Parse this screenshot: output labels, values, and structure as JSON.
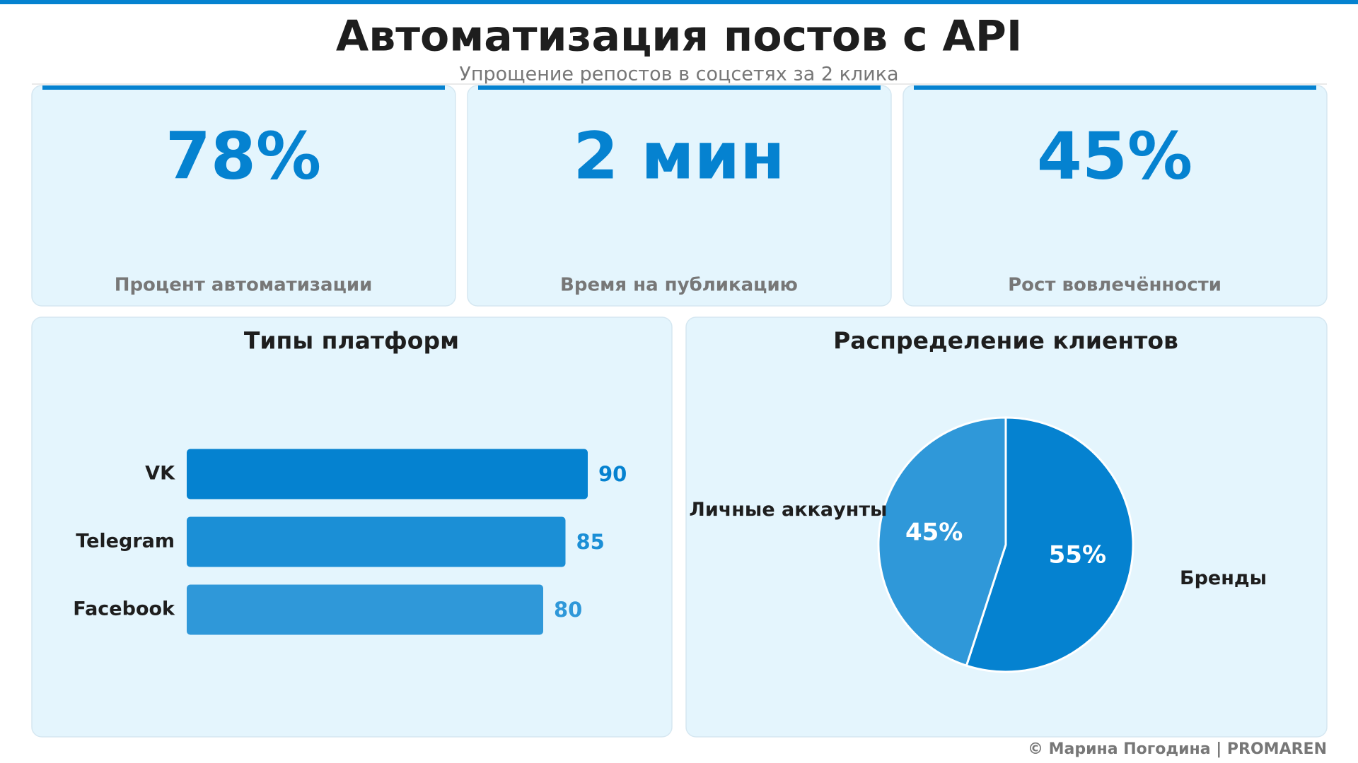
{
  "header": {
    "title": "Автоматизация постов с API",
    "subtitle": "Упрощение репостов в соцсетях за 2 клика"
  },
  "kpis": [
    {
      "value": "78%",
      "label": "Процент автоматизации"
    },
    {
      "value": "2 мин",
      "label": "Время на публикацию"
    },
    {
      "value": "45%",
      "label": "Рост вовлечённости"
    }
  ],
  "chart_data": [
    {
      "type": "bar",
      "title": "Типы платформ",
      "categories": [
        "VK",
        "Telegram",
        "Facebook"
      ],
      "values": [
        90,
        85,
        80
      ],
      "colors": [
        "#0582d0",
        "#1b8fd6",
        "#2f98d9"
      ]
    },
    {
      "type": "pie",
      "title": "Распределение клиентов",
      "categories": [
        "Бренды",
        "Личные аккаунты"
      ],
      "values": [
        55,
        45
      ],
      "value_labels": [
        "55%",
        "45%"
      ],
      "colors": [
        "#0582d0",
        "#2f98d9"
      ]
    }
  ],
  "footer": "© Марина Погодина | PROMAREN"
}
